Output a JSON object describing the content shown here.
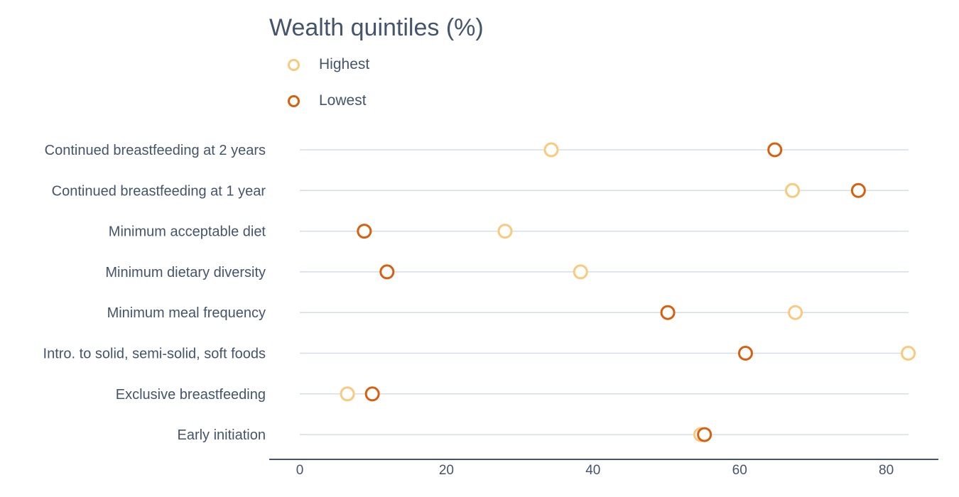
{
  "chart_data": {
    "type": "dot",
    "title": "Wealth quintiles (%)",
    "categories": [
      "Continued breastfeeding at 2 years",
      "Continued breastfeeding at 1 year",
      "Minimum acceptable diet",
      "Minimum dietary diversity",
      "Minimum meal frequency",
      "Intro. to solid, semi-solid, soft foods",
      "Exclusive breastfeeding",
      "Early initiation"
    ],
    "series": [
      {
        "name": "Highest",
        "color": "#f9c97c",
        "values": [
          34.3,
          67.2,
          28.0,
          38.3,
          67.6,
          83.0,
          6.5,
          54.7
        ]
      },
      {
        "name": "Lowest",
        "color": "#d95f0e",
        "values": [
          64.8,
          76.2,
          8.8,
          11.9,
          50.2,
          60.8,
          9.9,
          55.2
        ]
      }
    ],
    "xlim": [
      0,
      83
    ],
    "xticks": [
      0,
      20,
      40,
      60,
      80
    ],
    "grid": "horizontal-per-category",
    "legend_position": "top-left",
    "xlabel": "",
    "ylabel": ""
  }
}
